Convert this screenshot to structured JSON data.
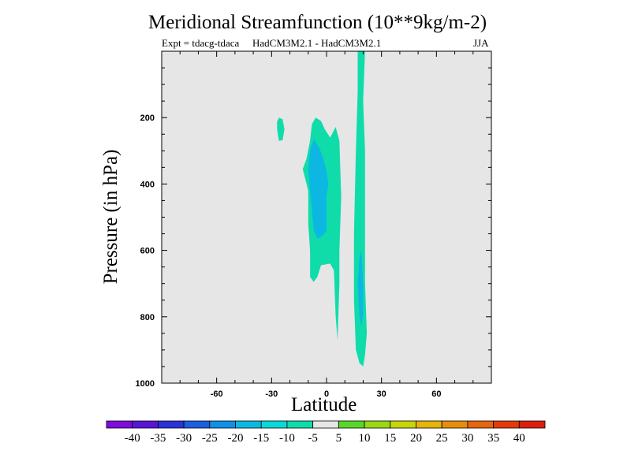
{
  "chart_data": {
    "type": "contour",
    "title": "Meridional Streamfunction (10**9kg/m-2)",
    "subtitle_left": "Expt = tdacg-tdaca",
    "subtitle_center": "HadCM3M2.1 - HadCM3M2.1",
    "subtitle_right": "JJA",
    "xlabel": "Latitude",
    "ylabel": "Pressure (in hPa)",
    "xlim": [
      -90,
      90
    ],
    "ylim": [
      1000,
      0
    ],
    "xticks": [
      -60,
      -30,
      0,
      30,
      60
    ],
    "yticks": [
      200,
      400,
      600,
      800,
      1000
    ],
    "background_color": "#e6e6e6",
    "colorbar": {
      "labels": [
        -40,
        -35,
        -30,
        -25,
        -20,
        -15,
        -10,
        -5,
        5,
        10,
        15,
        20,
        25,
        30,
        35,
        40
      ],
      "colors": [
        "#7e0cde",
        "#5a14d6",
        "#2a32d8",
        "#1a5fe0",
        "#1290e6",
        "#0cb8e2",
        "#0ad8d8",
        "#10dcaa",
        "#e6e6e6",
        "#5ad62a",
        "#9ad814",
        "#cad40a",
        "#e6b40a",
        "#e68e0c",
        "#e6650e",
        "#e43a0a",
        "#dc1e0c"
      ]
    },
    "regions": [
      {
        "level": "-10 to -5",
        "color": "#10dcaa",
        "points": [
          [
            -26,
            200
          ],
          [
            -24,
            205
          ],
          [
            -23,
            235
          ],
          [
            -24,
            268
          ],
          [
            -26,
            270
          ],
          [
            -27,
            235
          ],
          [
            -27,
            212
          ]
        ]
      },
      {
        "level": "-10 to -5",
        "color": "#10dcaa",
        "points": [
          [
            -6,
            200
          ],
          [
            -3,
            210
          ],
          [
            -1,
            235
          ],
          [
            2,
            260
          ],
          [
            5,
            228
          ],
          [
            7,
            270
          ],
          [
            8,
            440
          ],
          [
            7,
            600
          ],
          [
            7,
            700
          ],
          [
            6,
            870
          ],
          [
            5,
            800
          ],
          [
            4,
            660
          ],
          [
            2,
            640
          ],
          [
            -3,
            645
          ],
          [
            -5,
            680
          ],
          [
            -7,
            695
          ],
          [
            -9,
            680
          ],
          [
            -9,
            600
          ],
          [
            -10,
            520
          ],
          [
            -10,
            420
          ],
          [
            -13,
            355
          ],
          [
            -11,
            325
          ],
          [
            -9,
            270
          ],
          [
            -8,
            220
          ]
        ]
      },
      {
        "level": "-15 to -10",
        "color": "#0cb8e2",
        "points": [
          [
            -7,
            265
          ],
          [
            -4,
            290
          ],
          [
            -2,
            320
          ],
          [
            0,
            360
          ],
          [
            1,
            400
          ],
          [
            0,
            440
          ],
          [
            0,
            490
          ],
          [
            0,
            540
          ],
          [
            -2,
            555
          ],
          [
            -5,
            565
          ],
          [
            -7,
            540
          ],
          [
            -8,
            480
          ],
          [
            -9,
            420
          ],
          [
            -10,
            360
          ],
          [
            -9,
            300
          ]
        ]
      },
      {
        "level": "-10 to -5",
        "color": "#10dcaa",
        "points": [
          [
            17,
            0
          ],
          [
            21,
            0
          ],
          [
            20,
            150
          ],
          [
            21,
            300
          ],
          [
            21,
            500
          ],
          [
            21,
            700
          ],
          [
            22,
            850
          ],
          [
            21,
            915
          ],
          [
            20,
            950
          ],
          [
            18,
            940
          ],
          [
            16,
            900
          ],
          [
            15,
            750
          ],
          [
            15,
            550
          ],
          [
            16,
            300
          ],
          [
            17,
            120
          ]
        ]
      },
      {
        "level": "-15 to -10",
        "color": "#0cb8e2",
        "points": [
          [
            19,
            600
          ],
          [
            20,
            700
          ],
          [
            20,
            790
          ],
          [
            19,
            830
          ],
          [
            18,
            800
          ],
          [
            17,
            700
          ],
          [
            18,
            620
          ]
        ]
      }
    ]
  }
}
